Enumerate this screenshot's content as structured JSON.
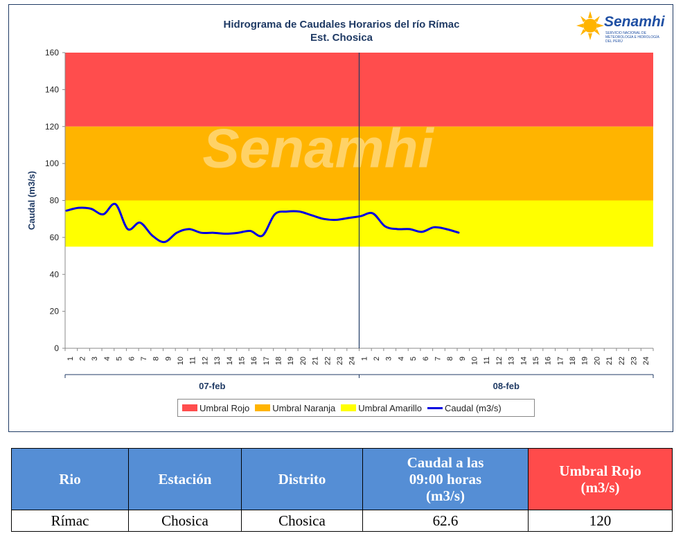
{
  "chart_data": {
    "type": "line",
    "title": "Hidrograma de Caudales Horarios del río Rímac",
    "subtitle": "Est. Chosica",
    "ylabel": "Caudal  (m3/s)",
    "xlabel": "",
    "ylim": [
      0,
      160
    ],
    "yticks": [
      0,
      20,
      40,
      60,
      80,
      100,
      120,
      140,
      160
    ],
    "xticks": [
      "1",
      "2",
      "3",
      "4",
      "5",
      "6",
      "7",
      "8",
      "9",
      "10",
      "11",
      "12",
      "13",
      "14",
      "15",
      "16",
      "17",
      "18",
      "19",
      "20",
      "21",
      "22",
      "23",
      "24",
      "1",
      "2",
      "3",
      "4",
      "5",
      "6",
      "7",
      "8",
      "9",
      "10",
      "11",
      "12",
      "13",
      "14",
      "15",
      "16",
      "17",
      "18",
      "19",
      "20",
      "21",
      "22",
      "23",
      "24"
    ],
    "days": [
      "07-feb",
      "08-feb"
    ],
    "bands": [
      {
        "name": "Umbral Rojo",
        "from": 120,
        "to": 160,
        "color": "#ff4d4d"
      },
      {
        "name": "Umbral Naranja",
        "from": 80,
        "to": 120,
        "color": "#ffb400"
      },
      {
        "name": "Umbral Amarillo",
        "from": 55,
        "to": 80,
        "color": "#ffff00"
      }
    ],
    "series": [
      {
        "name": "Caudal (m3/s)",
        "color": "#0000e0",
        "values": [
          74.5,
          76,
          75.5,
          72.5,
          78,
          64.5,
          68,
          61,
          57.5,
          62.5,
          64.5,
          62.5,
          62.5,
          62,
          62.5,
          63.5,
          61,
          72.5,
          74,
          74,
          72,
          70,
          69.5,
          70.5,
          71.5,
          73,
          66,
          64.5,
          64.5,
          63,
          65.5,
          64.5,
          62.6
        ]
      }
    ],
    "legend_position": "bottom",
    "grid": false
  },
  "logo": {
    "name": "Senamhi",
    "sub": "SERVICIO NACIONAL DE METEOROLOGÍA E HIDROLOGÍA DEL PERÚ"
  },
  "table": {
    "headers": [
      "Rio",
      "Estación",
      "Distrito",
      "Caudal a las 09:00 horas (m3/s)",
      "Umbral Rojo (m3/s)"
    ],
    "row": [
      "Rímac",
      "Chosica",
      "Chosica",
      "62.6",
      "120"
    ]
  }
}
